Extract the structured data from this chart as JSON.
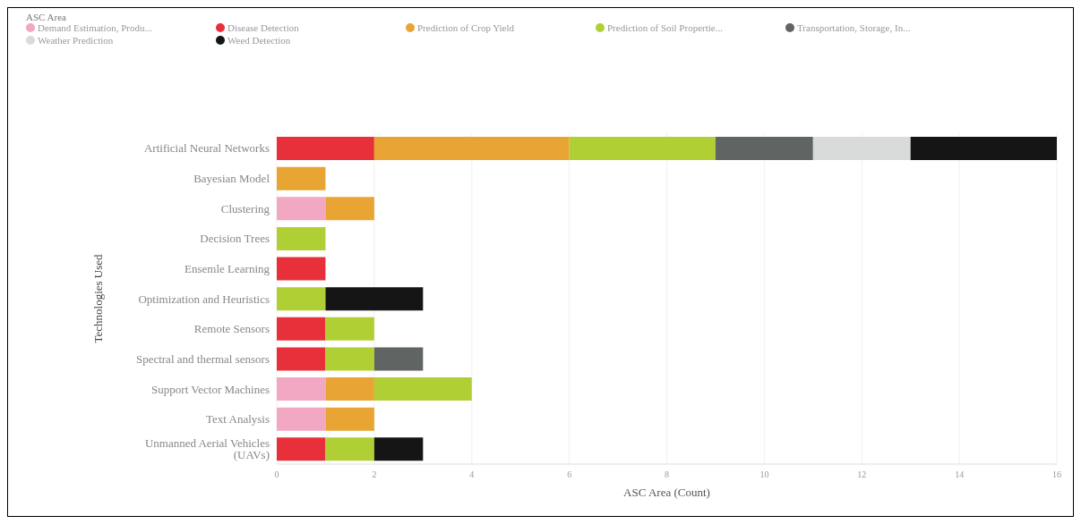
{
  "chart_data": {
    "type": "bar",
    "orientation": "horizontal",
    "stacked": true,
    "legend_title": "ASC Area",
    "xlabel": "ASC Area (Count)",
    "ylabel": "Technologies Used",
    "categories": [
      "Artificial Neural Networks",
      "Bayesian Model",
      "Clustering",
      "Decision Trees",
      "Ensemle Learning",
      "Optimization and Heuristics",
      "Remote Sensors",
      "Spectral and thermal sensors",
      "Support Vector Machines",
      "Text Analysis",
      "Unmanned Aerial Vehicles (UAVs)"
    ],
    "series": [
      {
        "name": "Demand Estimation, Produ...",
        "color": "#f2a7c3",
        "values": [
          null,
          null,
          1,
          null,
          null,
          null,
          null,
          null,
          1,
          1,
          null
        ]
      },
      {
        "name": "Disease Detection",
        "color": "#e8303a",
        "values": [
          2,
          null,
          null,
          null,
          1,
          null,
          1,
          1,
          null,
          null,
          1
        ]
      },
      {
        "name": "Prediction of Crop Yield",
        "color": "#e9a534",
        "values": [
          4,
          1,
          1,
          null,
          null,
          null,
          null,
          null,
          1,
          1,
          null
        ]
      },
      {
        "name": "Prediction of Soil Propertie...",
        "color": "#b0cf34",
        "values": [
          3,
          null,
          null,
          1,
          null,
          1,
          1,
          1,
          2,
          null,
          1
        ]
      },
      {
        "name": "Transportation, Storage, In...",
        "color": "#606463",
        "values": [
          2,
          null,
          null,
          null,
          null,
          null,
          null,
          1,
          null,
          null,
          null
        ]
      },
      {
        "name": "Weather Prediction",
        "color": "#d9dbda",
        "values": [
          2,
          null,
          null,
          null,
          null,
          null,
          null,
          null,
          null,
          null,
          null
        ]
      },
      {
        "name": "Weed Detection",
        "color": "#151515",
        "values": [
          3,
          null,
          null,
          null,
          null,
          2,
          null,
          null,
          null,
          null,
          1
        ]
      }
    ],
    "xlim": [
      0,
      16
    ],
    "xticks": [
      0,
      2,
      4,
      6,
      8,
      10,
      12,
      14,
      16
    ],
    "grid": "x",
    "legend": "top left"
  }
}
